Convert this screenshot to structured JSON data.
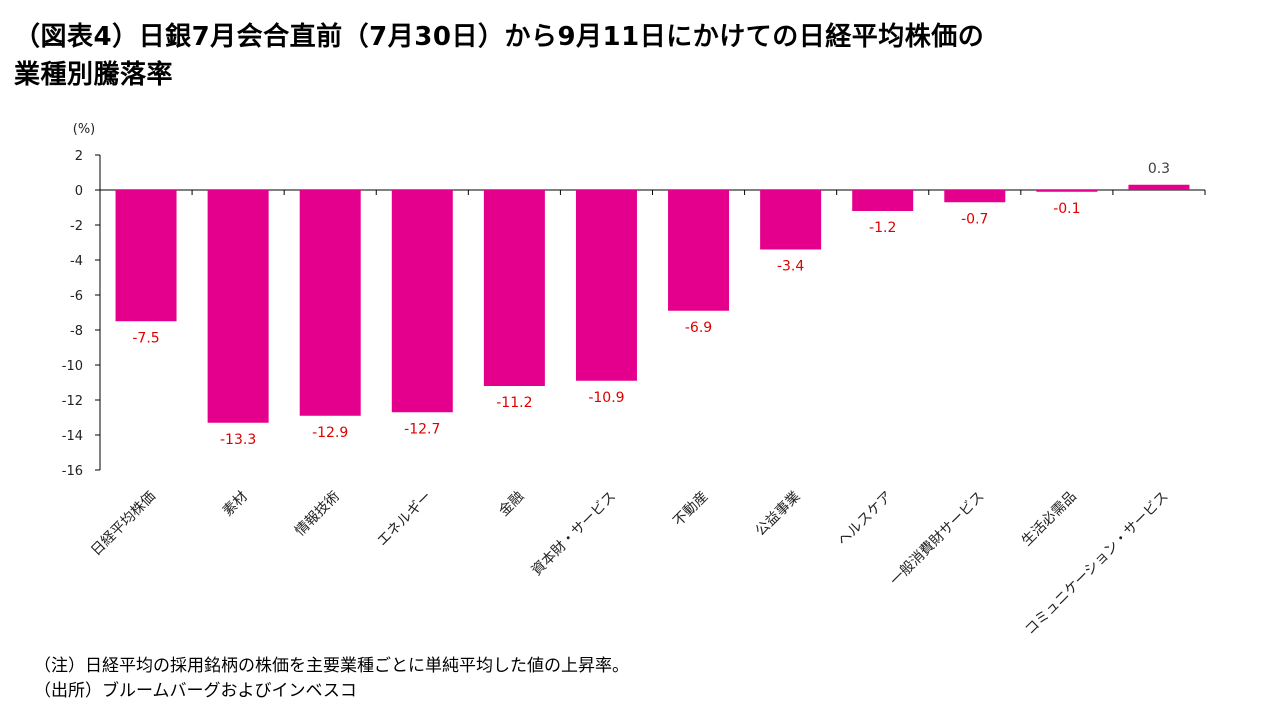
{
  "title": {
    "line1": "（図表4）日銀7月会合直前（7月30日）から9月11日にかけての日経平均株価の",
    "line2": "業種別騰落率"
  },
  "colors": {
    "bar": "#e4008c",
    "negative_label": "#e00000",
    "positive_label": "#404040",
    "axis": "#000000"
  },
  "chart_data": {
    "type": "bar",
    "title": "",
    "ylabel": "(%)",
    "xlabel": "",
    "ylim": [
      -16,
      2
    ],
    "yticks": [
      "2",
      "0",
      "-2",
      "-4",
      "-6",
      "-8",
      "-10",
      "-12",
      "-14",
      "-16"
    ],
    "categories": [
      "日経平均株価",
      "素材",
      "情報技術",
      "エネルギー",
      "金融",
      "資本財・サービス",
      "不動産",
      "公益事業",
      "ヘルスケア",
      "一般消費財サービス",
      "生活必需品",
      "コミュニケーション・サービス"
    ],
    "values": [
      -7.5,
      -13.3,
      -12.9,
      -12.7,
      -11.2,
      -10.9,
      -6.9,
      -3.4,
      -1.2,
      -0.7,
      -0.1,
      0.3
    ],
    "data_labels": [
      "-7.5",
      "-13.3",
      "-12.9",
      "-12.7",
      "-11.2",
      "-10.9",
      "-6.9",
      "-3.4",
      "-1.2",
      "-0.7",
      "-0.1",
      "0.3"
    ],
    "grid": false
  },
  "notes": {
    "note": "（注）日経平均の採用銘柄の株価を主要業種ごとに単純平均した値の上昇率。",
    "source": "（出所）ブルームバーグおよびインベスコ"
  }
}
